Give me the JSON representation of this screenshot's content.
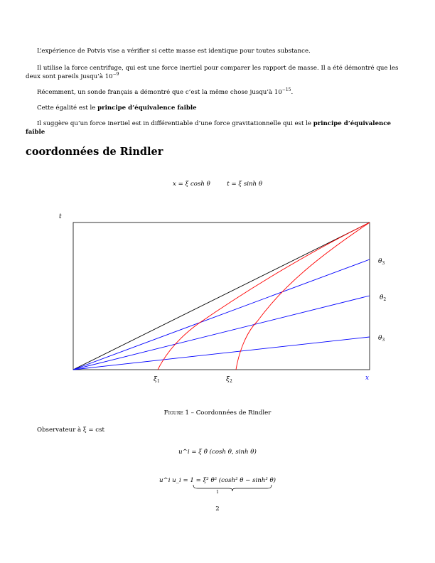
{
  "paragraphs": {
    "p1": "L’expérience de Potvis vise a vérifier si cette masse est identique pour toutes substance.",
    "p2_text": "Il utilise la force centrifuge, qui est une force inertiel pour comparer les rapport de masse. Il a été démontré que les deux sont pareils jusqu’à 10",
    "p2_exp": "−9",
    "p3_text": "Récemment, un sonde français a démontré que c’est la même chose jusqu’à 10",
    "p3_exp": "−15",
    "p3_end": ".",
    "p4_text": "Cette égalité est le ",
    "p4_bold": "principe d’équivalence faible",
    "p5_text": "Il suggère qu’un force inertiel est in différentiable d’une force gravitationnelle qui est le ",
    "p5_bold": "principe d’équivalence faible",
    "p6": "Observateur à ξ = cst"
  },
  "section_title": "coordonnées de Rindler",
  "equations": {
    "eq1a": "x = ξ cosh θ",
    "eq1b": "t = ξ sinh θ",
    "eq2": "u^i = ξ θ̇ (cosh θ, sinh θ)",
    "eq3": "u^i u_i = 1 = ξ² θ̇² (cosh² θ − sinh² θ)",
    "eq3_under": "1"
  },
  "figure": {
    "caption_label": "Figure 1",
    "caption_sep": " – ",
    "caption_text": "Coordonnées de Rindler",
    "axis_t": "t",
    "axis_x": "x",
    "labels": {
      "theta3_top": "θ",
      "theta3_top_sub": "3",
      "theta2": "θ",
      "theta2_sub": "2",
      "theta3_bottom": "θ",
      "theta3_bottom_sub": "3",
      "xi1": "ξ",
      "xi1_sub": "1",
      "xi2": "ξ",
      "xi2_sub": "2"
    },
    "colors": {
      "lightcone": "#000000",
      "rays": "#0000ff",
      "hyperbolas": "#ff0000",
      "x_label": "#0000ff"
    }
  },
  "page_number": "2"
}
